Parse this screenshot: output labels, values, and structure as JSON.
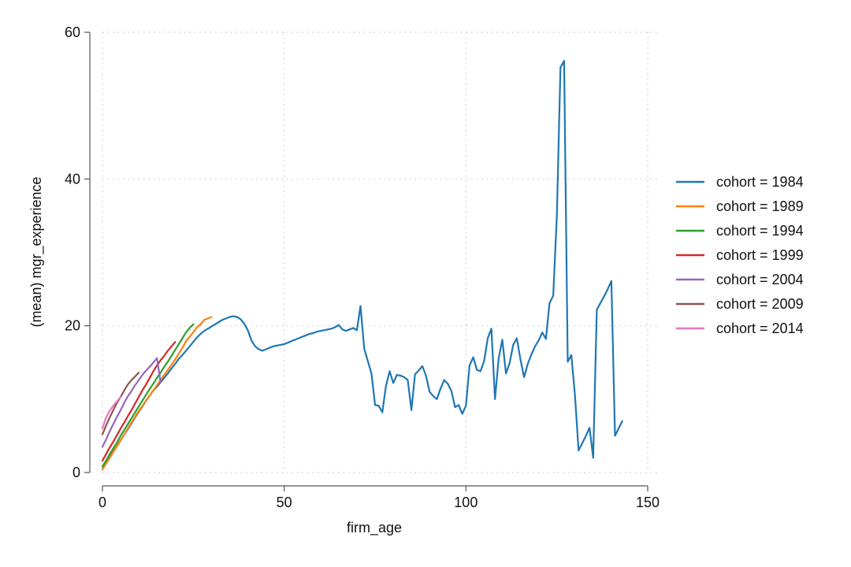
{
  "chart_data": {
    "type": "line",
    "title": "",
    "xlabel": "firm_age",
    "ylabel": "(mean) mgr_experience",
    "xlim": [
      0,
      150
    ],
    "ylim": [
      0,
      60
    ],
    "xticks": [
      0,
      50,
      100,
      150
    ],
    "yticks": [
      0,
      20,
      40,
      60
    ],
    "grid": true,
    "legend_position": "right",
    "series": [
      {
        "name": "cohort = 1984",
        "color": "#1f77b4",
        "x": [
          0,
          1,
          2,
          3,
          4,
          5,
          6,
          7,
          8,
          9,
          10,
          11,
          12,
          13,
          14,
          15,
          16,
          17,
          18,
          19,
          20,
          21,
          22,
          23,
          24,
          25,
          26,
          27,
          28,
          29,
          30,
          31,
          32,
          33,
          34,
          35,
          36,
          37,
          38,
          39,
          40,
          41,
          42,
          43,
          44,
          45,
          46,
          47,
          48,
          49,
          50,
          51,
          52,
          53,
          54,
          55,
          56,
          57,
          58,
          59,
          60,
          61,
          62,
          63,
          64,
          65,
          66,
          67,
          68,
          69,
          70,
          71,
          72,
          73,
          74,
          75,
          76,
          77,
          78,
          79,
          80,
          81,
          82,
          83,
          84,
          85,
          86,
          87,
          88,
          89,
          90,
          91,
          92,
          93,
          94,
          95,
          96,
          97,
          98,
          99,
          100,
          101,
          102,
          103,
          104,
          105,
          106,
          107,
          108,
          109,
          110,
          111,
          112,
          113,
          114,
          115,
          116,
          117,
          118,
          119,
          120,
          121,
          122,
          123,
          124,
          125,
          126,
          127,
          128,
          129,
          130,
          131,
          132,
          133,
          134,
          135,
          136,
          137,
          138,
          139,
          140,
          141,
          142,
          143
        ],
        "y": [
          0.8,
          1.5,
          2.3,
          2.9,
          3.6,
          4.4,
          5.2,
          5.9,
          6.7,
          7.5,
          8.3,
          9.0,
          9.8,
          10.5,
          11.2,
          11.7,
          12.3,
          12.9,
          13.5,
          14.2,
          14.8,
          15.5,
          16.0,
          16.6,
          17.2,
          17.8,
          18.4,
          18.9,
          19.3,
          19.6,
          19.9,
          20.2,
          20.5,
          20.8,
          21.0,
          21.2,
          21.3,
          21.2,
          20.9,
          20.3,
          19.4,
          18.0,
          17.2,
          16.8,
          16.6,
          16.8,
          17.0,
          17.2,
          17.3,
          17.4,
          17.5,
          17.7,
          17.9,
          18.1,
          18.3,
          18.5,
          18.7,
          18.9,
          19.0,
          19.2,
          19.3,
          19.4,
          19.5,
          19.6,
          19.8,
          20.1,
          19.5,
          19.3,
          19.5,
          19.7,
          19.4,
          22.7,
          16.9,
          15.2,
          13.5,
          9.2,
          9.1,
          8.2,
          11.8,
          13.8,
          12.2,
          13.3,
          13.2,
          13.0,
          12.6,
          8.5,
          13.4,
          13.9,
          14.5,
          13.2,
          11.0,
          10.4,
          10.0,
          11.4,
          12.6,
          12.1,
          11.1,
          8.9,
          9.2,
          8.0,
          9.1,
          14.6,
          15.7,
          14.0,
          13.8,
          15.2,
          18.3,
          19.6,
          10.0,
          15.6,
          18.1,
          13.5,
          14.9,
          17.4,
          18.3,
          15.4,
          13.0,
          14.8,
          16.1,
          17.2,
          18.0,
          19.1,
          18.2,
          23.1,
          24.1,
          35.0,
          55.2,
          56.1,
          15.1,
          16.0,
          10.5,
          3.0,
          4.0,
          5.0,
          6.1,
          2.0,
          22.2,
          23.1,
          24.0,
          25.0,
          26.1,
          5.0,
          6.0,
          7.0
        ]
      },
      {
        "name": "cohort = 1989",
        "color": "#ff7f0e",
        "x": [
          0,
          1,
          2,
          3,
          4,
          5,
          6,
          7,
          8,
          9,
          10,
          11,
          12,
          13,
          14,
          15,
          16,
          17,
          18,
          19,
          20,
          21,
          22,
          23,
          24,
          25,
          26,
          27,
          28,
          29,
          30
        ],
        "y": [
          0.4,
          1.2,
          2.0,
          2.8,
          3.6,
          4.4,
          5.2,
          6.0,
          6.8,
          7.6,
          8.4,
          9.1,
          9.8,
          10.5,
          11.2,
          11.9,
          12.6,
          13.3,
          14.0,
          14.7,
          15.4,
          16.2,
          17.0,
          17.9,
          18.5,
          19.1,
          19.8,
          20.2,
          20.8,
          21.0,
          21.2
        ]
      },
      {
        "name": "cohort = 1994",
        "color": "#2ca02c",
        "x": [
          0,
          1,
          2,
          3,
          4,
          5,
          6,
          7,
          8,
          9,
          10,
          11,
          12,
          13,
          14,
          15,
          16,
          17,
          18,
          19,
          20,
          21,
          22,
          23,
          24,
          25
        ],
        "y": [
          0.8,
          1.6,
          2.5,
          3.3,
          4.1,
          5.0,
          5.8,
          6.6,
          7.4,
          8.2,
          9.0,
          9.8,
          10.6,
          11.4,
          12.1,
          12.9,
          13.6,
          14.4,
          15.1,
          15.9,
          16.7,
          17.5,
          18.3,
          19.1,
          19.7,
          20.2
        ]
      },
      {
        "name": "cohort = 1999",
        "color": "#d62728",
        "x": [
          0,
          1,
          2,
          3,
          4,
          5,
          6,
          7,
          8,
          9,
          10,
          11,
          12,
          13,
          14,
          15,
          16,
          17,
          18,
          19,
          20
        ],
        "y": [
          1.6,
          2.5,
          3.4,
          4.2,
          5.1,
          6.0,
          6.8,
          7.7,
          8.5,
          9.4,
          10.3,
          11.2,
          12.0,
          12.9,
          13.8,
          14.6,
          15.3,
          15.9,
          16.6,
          17.2,
          17.8
        ]
      },
      {
        "name": "cohort = 2004",
        "color": "#9467bd",
        "x": [
          0,
          1,
          2,
          3,
          4,
          5,
          6,
          7,
          8,
          9,
          10,
          11,
          12,
          13,
          14,
          15,
          16
        ],
        "y": [
          3.5,
          4.5,
          5.6,
          6.6,
          7.6,
          8.5,
          9.5,
          10.4,
          11.1,
          11.9,
          12.6,
          13.3,
          13.9,
          14.4,
          15.0,
          15.6,
          12.3
        ]
      },
      {
        "name": "cohort = 2009",
        "color": "#8c564b",
        "x": [
          0,
          1,
          2,
          3,
          4,
          5,
          6,
          7,
          8,
          9,
          10
        ],
        "y": [
          5.2,
          6.4,
          7.5,
          8.5,
          9.5,
          10.3,
          11.2,
          12.0,
          12.6,
          13.1,
          13.6
        ]
      },
      {
        "name": "cohort = 2014",
        "color": "#e377c2",
        "x": [
          0,
          1,
          2,
          3,
          4,
          5
        ],
        "y": [
          6.0,
          7.5,
          8.4,
          9.1,
          9.7,
          10.3
        ]
      }
    ]
  }
}
